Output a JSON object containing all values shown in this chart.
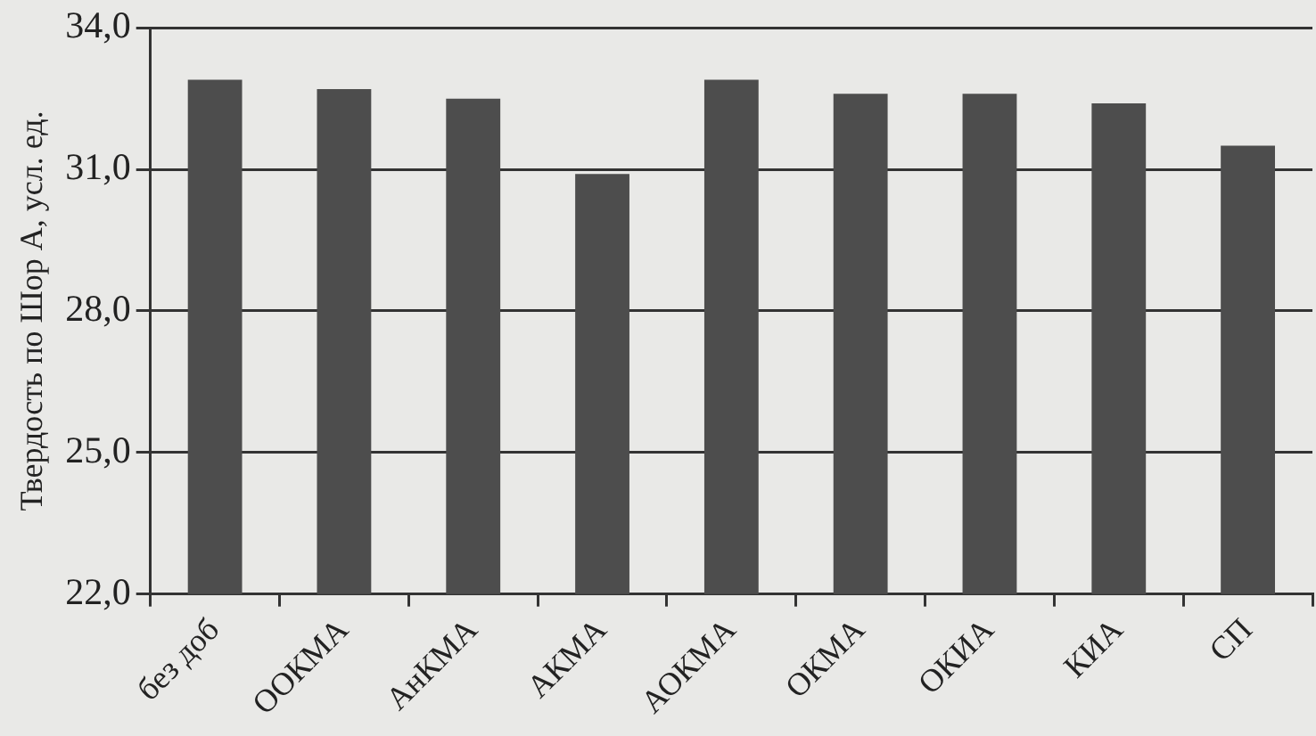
{
  "chart_data": {
    "type": "bar",
    "ylabel": "Твердость по Шор А, усл. ед.",
    "categories": [
      "без доб",
      "ООКМА",
      "АнКМА",
      "АКМА",
      "АОКМА",
      "ОКМА",
      "ОКИА",
      "КИА",
      "СП"
    ],
    "values": [
      32.9,
      32.7,
      32.5,
      30.9,
      32.9,
      32.6,
      32.6,
      32.4,
      31.5
    ],
    "color": "#4d4d4d",
    "ylim": [
      22,
      34
    ],
    "yticks": [
      {
        "value": 22,
        "label": "22,0"
      },
      {
        "value": 25,
        "label": "25,0"
      },
      {
        "value": 28,
        "label": "28,0"
      },
      {
        "value": 31,
        "label": "31,0"
      },
      {
        "value": 34,
        "label": "34,0"
      }
    ],
    "grid": "y",
    "legend": false
  }
}
